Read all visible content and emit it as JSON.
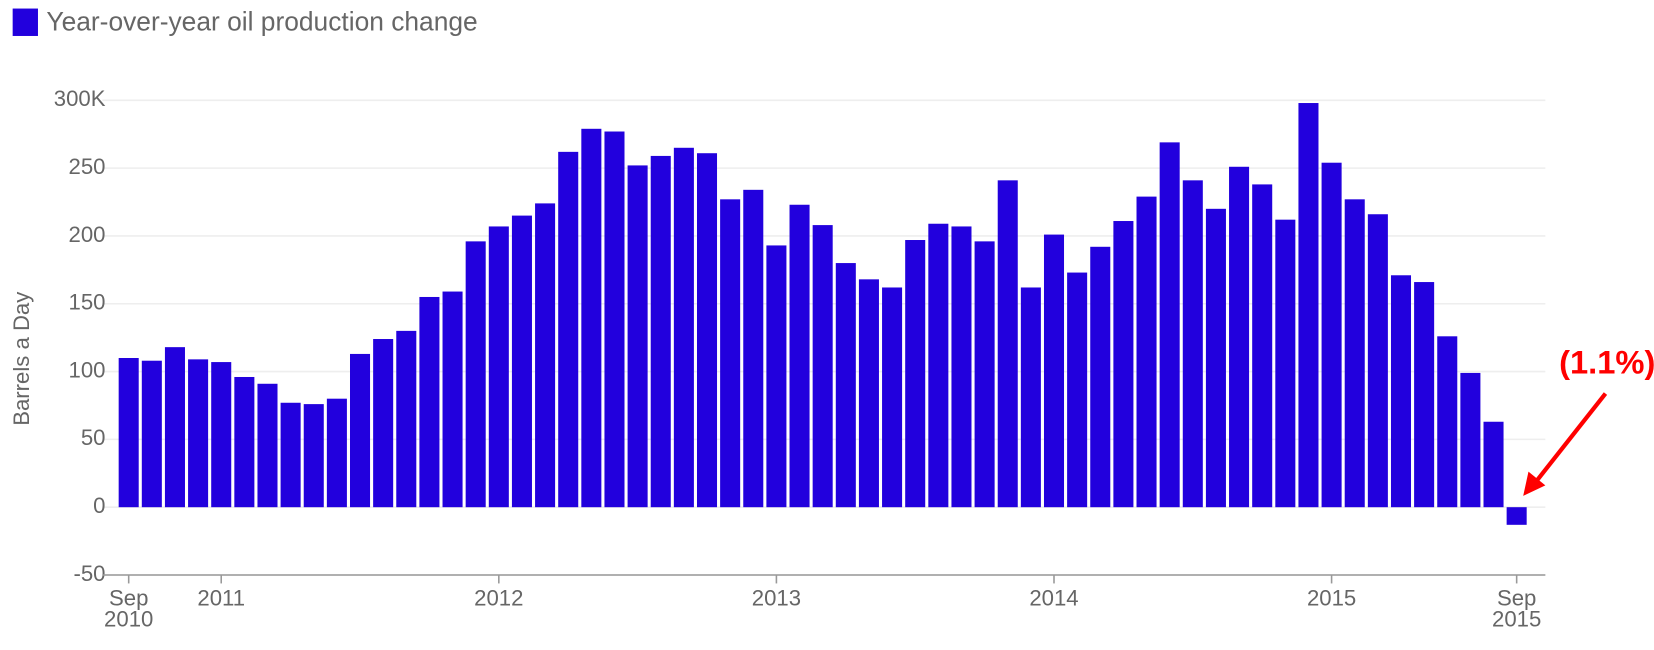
{
  "chart_data": {
    "type": "bar",
    "legend": "Year-over-year oil production change",
    "y_label": "Barrels a Day",
    "annotation": "(1.1%)",
    "color": "#2200dd",
    "grid": true,
    "categories": [
      "Sep 2010",
      null,
      null,
      null,
      "2011",
      null,
      null,
      null,
      null,
      null,
      null,
      null,
      null,
      null,
      null,
      null,
      "2012",
      null,
      null,
      null,
      null,
      null,
      null,
      null,
      null,
      null,
      null,
      null,
      "2013",
      null,
      null,
      null,
      null,
      null,
      null,
      null,
      null,
      null,
      null,
      null,
      "2014",
      null,
      null,
      null,
      null,
      null,
      null,
      null,
      null,
      null,
      null,
      null,
      "2015",
      null,
      null,
      null,
      null,
      null,
      null,
      null,
      "Sep 2015"
    ],
    "values": [
      110,
      108,
      118,
      109,
      107,
      96,
      91,
      77,
      76,
      80,
      113,
      124,
      130,
      155,
      159,
      196,
      207,
      215,
      224,
      262,
      279,
      277,
      252,
      259,
      265,
      261,
      227,
      234,
      193,
      223,
      208,
      180,
      168,
      162,
      197,
      209,
      207,
      196,
      241,
      162,
      201,
      173,
      192,
      211,
      229,
      269,
      241,
      220,
      251,
      238,
      212,
      298,
      254,
      227,
      216,
      171,
      166,
      126,
      99,
      63,
      -13
    ],
    "ylim": [
      -50,
      300
    ],
    "yticks": [
      -50,
      0,
      50,
      100,
      150,
      200,
      250,
      {
        "value": 300,
        "label": "300K"
      }
    ]
  }
}
